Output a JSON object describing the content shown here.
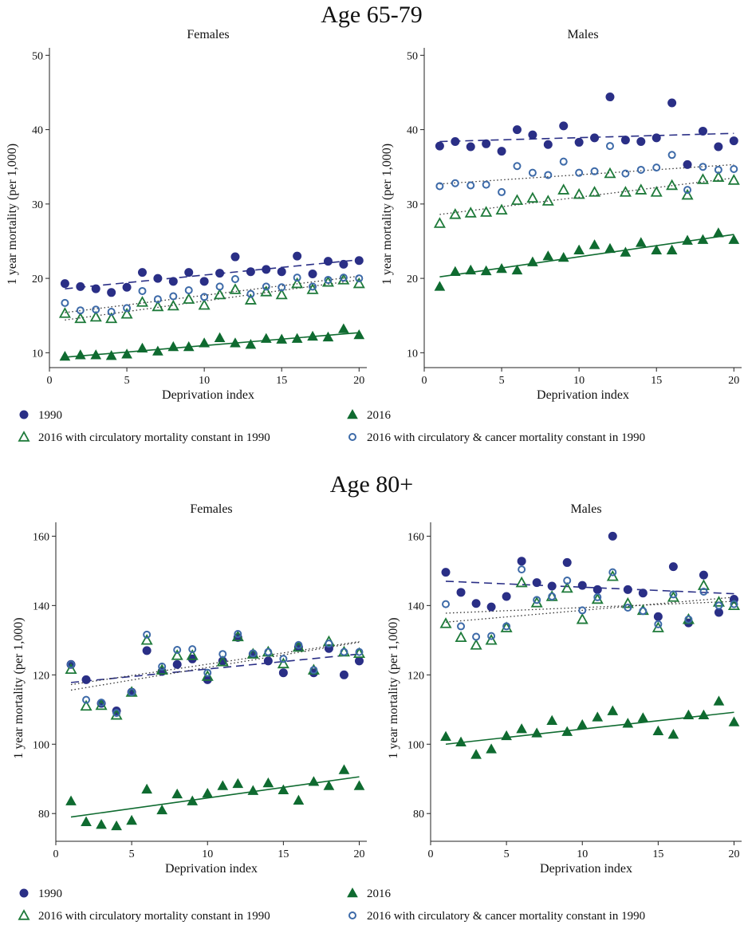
{
  "sections": [
    {
      "title": "Age 65-79"
    },
    {
      "title": "Age 80+"
    }
  ],
  "legend": {
    "s1990": "1990",
    "s2016": "2016",
    "circ": "2016 with circulatory mortality constant in 1990",
    "circcancer": "2016 with circulatory & cancer mortality constant in 1990"
  },
  "colors": {
    "s1990": "#2a2f86",
    "s2016": "#0f6b30",
    "circ": "#1e7a3a",
    "circcancer": "#3d6aa8"
  },
  "chart_data": [
    {
      "type": "scatter",
      "section": "Age 65-79",
      "title": "Females",
      "xlabel": "Deprivation index",
      "ylabel": "1 year mortality (per 1,000)",
      "xlim": [
        0,
        20.5
      ],
      "ylim": [
        8,
        51
      ],
      "xticks": [
        0,
        5,
        10,
        15,
        20
      ],
      "yticks": [
        10,
        20,
        30,
        40,
        50
      ],
      "x": [
        1,
        2,
        3,
        4,
        5,
        6,
        7,
        8,
        9,
        10,
        11,
        12,
        13,
        14,
        15,
        16,
        17,
        18,
        19,
        20
      ],
      "series": [
        {
          "name": "1990",
          "key": "s1990",
          "marker": "circle-filled",
          "line": "dashed",
          "values": [
            19.3,
            18.9,
            18.6,
            18.1,
            18.8,
            20.8,
            20.0,
            19.6,
            20.8,
            19.6,
            20.7,
            22.9,
            20.9,
            21.2,
            20.9,
            23.0,
            20.6,
            22.3,
            21.9,
            22.4
          ],
          "fit": [
            18.6,
            22.5
          ]
        },
        {
          "name": "2016",
          "key": "s2016",
          "marker": "triangle-filled",
          "line": "solid",
          "values": [
            9.5,
            9.7,
            9.7,
            9.6,
            9.8,
            10.6,
            10.2,
            10.8,
            10.8,
            11.3,
            12.0,
            11.3,
            11.1,
            11.9,
            11.8,
            11.9,
            12.2,
            12.1,
            13.2,
            12.4
          ],
          "fit": [
            9.4,
            12.7
          ]
        },
        {
          "name": "2016 with circulatory mortality constant in 1990",
          "key": "circ",
          "marker": "triangle-open",
          "line": "dotted",
          "values": [
            15.3,
            14.6,
            14.8,
            14.6,
            15.2,
            16.8,
            16.2,
            16.3,
            17.2,
            16.4,
            17.8,
            18.5,
            17.1,
            18.2,
            17.8,
            19.3,
            18.5,
            19.5,
            19.8,
            19.3
          ],
          "fit": [
            14.4,
            19.8
          ]
        },
        {
          "name": "2016 with circulatory & cancer mortality constant in 1990",
          "key": "circcancer",
          "marker": "circle-open",
          "line": "dotted",
          "values": [
            16.7,
            15.7,
            15.8,
            15.5,
            16.0,
            18.3,
            17.2,
            17.6,
            18.4,
            17.5,
            18.9,
            19.9,
            17.9,
            18.9,
            18.8,
            20.1,
            18.9,
            19.8,
            20.1,
            20.0
          ],
          "fit": [
            15.4,
            20.3
          ]
        }
      ]
    },
    {
      "type": "scatter",
      "section": "Age 65-79",
      "title": "Males",
      "xlabel": "Deprivation index",
      "ylabel": "1 year mortality (per 1,000)",
      "xlim": [
        0,
        20.5
      ],
      "ylim": [
        8,
        51
      ],
      "xticks": [
        0,
        5,
        10,
        15,
        20
      ],
      "yticks": [
        10,
        20,
        30,
        40,
        50
      ],
      "x": [
        1,
        2,
        3,
        4,
        5,
        6,
        7,
        8,
        9,
        10,
        11,
        12,
        13,
        14,
        15,
        16,
        17,
        18,
        19,
        20
      ],
      "series": [
        {
          "name": "1990",
          "key": "s1990",
          "marker": "circle-filled",
          "line": "dashed",
          "values": [
            37.8,
            38.4,
            37.7,
            38.1,
            37.1,
            40.0,
            39.3,
            38.0,
            40.5,
            38.3,
            38.9,
            44.4,
            38.6,
            38.4,
            38.9,
            43.6,
            35.3,
            39.8,
            37.7,
            38.5
          ],
          "fit": [
            38.4,
            39.5
          ]
        },
        {
          "name": "2016",
          "key": "s2016",
          "marker": "triangle-filled",
          "line": "solid",
          "values": [
            18.9,
            20.9,
            21.1,
            21.0,
            21.3,
            21.1,
            22.2,
            23.0,
            22.8,
            23.8,
            24.5,
            24.0,
            23.5,
            24.8,
            23.8,
            23.8,
            25.1,
            25.2,
            26.1,
            25.2
          ],
          "fit": [
            20.2,
            25.9
          ]
        },
        {
          "name": "2016 with circulatory mortality constant in 1990",
          "key": "circ",
          "marker": "triangle-open",
          "line": "dotted",
          "values": [
            27.4,
            28.6,
            28.8,
            28.9,
            29.2,
            30.5,
            30.8,
            30.4,
            31.9,
            31.3,
            31.6,
            34.1,
            31.6,
            31.9,
            31.6,
            32.5,
            31.2,
            33.3,
            33.6,
            33.2
          ],
          "fit": [
            28.6,
            33.5
          ]
        },
        {
          "name": "2016 with circulatory & cancer mortality constant in 1990",
          "key": "circcancer",
          "marker": "circle-open",
          "line": "dotted",
          "values": [
            32.4,
            32.8,
            32.5,
            32.6,
            31.6,
            35.1,
            34.2,
            33.9,
            35.7,
            34.2,
            34.4,
            37.8,
            34.1,
            34.6,
            34.9,
            36.6,
            31.9,
            35.0,
            34.6,
            34.7
          ],
          "fit": [
            32.7,
            35.3
          ]
        }
      ]
    },
    {
      "type": "scatter",
      "section": "Age 80+",
      "title": "Females",
      "xlabel": "Deprivation index",
      "ylabel": "1 year mortality (per 1,000)",
      "xlim": [
        0,
        20.5
      ],
      "ylim": [
        72,
        164
      ],
      "xticks": [
        0,
        5,
        10,
        15,
        20
      ],
      "yticks": [
        80,
        100,
        120,
        140,
        160
      ],
      "x": [
        1,
        2,
        3,
        4,
        5,
        6,
        7,
        8,
        9,
        10,
        11,
        12,
        13,
        14,
        15,
        16,
        17,
        18,
        19,
        20
      ],
      "series": [
        {
          "name": "1990",
          "key": "s1990",
          "marker": "circle-filled",
          "line": "dashed",
          "values": [
            123.0,
            118.6,
            111.8,
            109.6,
            115.0,
            127.0,
            121.0,
            123.0,
            124.6,
            118.6,
            124.0,
            130.8,
            126.0,
            124.0,
            120.6,
            128.0,
            120.6,
            127.6,
            120.0,
            124.0
          ],
          "fit": [
            117.8,
            126.0
          ]
        },
        {
          "name": "2016",
          "key": "s2016",
          "marker": "triangle-filled",
          "line": "solid",
          "values": [
            83.6,
            77.6,
            76.8,
            76.4,
            78.0,
            87.0,
            81.0,
            85.6,
            83.6,
            85.8,
            88.0,
            88.6,
            86.6,
            88.8,
            86.8,
            83.8,
            89.2,
            88.0,
            92.6,
            88.0
          ],
          "fit": [
            79.0,
            90.6
          ]
        },
        {
          "name": "2016 with circulatory mortality constant in 1990",
          "key": "circ",
          "marker": "triangle-open",
          "line": "dotted",
          "values": [
            121.6,
            111.0,
            111.2,
            108.4,
            115.0,
            130.0,
            121.4,
            125.6,
            125.6,
            119.6,
            123.8,
            131.0,
            126.0,
            126.6,
            123.2,
            128.0,
            121.4,
            129.6,
            126.6,
            126.2
          ],
          "fit": [
            115.6,
            129.4
          ]
        },
        {
          "name": "2016 with circulatory & cancer mortality constant in 1990",
          "key": "circcancer",
          "marker": "circle-open",
          "line": "dotted",
          "values": [
            123.0,
            112.8,
            112.0,
            109.0,
            115.0,
            131.6,
            122.4,
            127.2,
            127.4,
            120.6,
            126.0,
            131.8,
            126.2,
            126.6,
            124.6,
            128.6,
            121.4,
            129.0,
            126.6,
            126.6
          ],
          "fit": [
            117.2,
            129.6
          ]
        }
      ]
    },
    {
      "type": "scatter",
      "section": "Age 80+",
      "title": "Males",
      "xlabel": "Deprivation index",
      "ylabel": "1 year mortality (per 1,000)",
      "xlim": [
        0,
        20.5
      ],
      "ylim": [
        72,
        164
      ],
      "xticks": [
        0,
        5,
        10,
        15,
        20
      ],
      "yticks": [
        80,
        100,
        120,
        140,
        160
      ],
      "x": [
        1,
        2,
        3,
        4,
        5,
        6,
        7,
        8,
        9,
        10,
        11,
        12,
        13,
        14,
        15,
        16,
        17,
        18,
        19,
        20
      ],
      "series": [
        {
          "name": "1990",
          "key": "s1990",
          "marker": "circle-filled",
          "line": "dashed",
          "values": [
            149.6,
            143.8,
            140.6,
            139.6,
            142.6,
            152.8,
            146.6,
            145.6,
            152.4,
            145.8,
            144.6,
            160.0,
            144.6,
            143.6,
            136.8,
            151.2,
            135.0,
            148.8,
            138.0,
            141.8
          ],
          "fit": [
            147.0,
            143.4
          ]
        },
        {
          "name": "2016",
          "key": "s2016",
          "marker": "triangle-filled",
          "line": "solid",
          "values": [
            102.2,
            100.6,
            97.0,
            98.6,
            102.4,
            104.4,
            103.2,
            106.8,
            103.6,
            105.6,
            107.8,
            109.6,
            106.0,
            107.6,
            103.8,
            102.8,
            108.4,
            108.4,
            112.4,
            106.4
          ],
          "fit": [
            100.0,
            109.2
          ]
        },
        {
          "name": "2016 with circulatory mortality constant in 1990",
          "key": "circ",
          "marker": "triangle-open",
          "line": "dotted",
          "values": [
            134.8,
            130.8,
            128.6,
            130.0,
            133.6,
            146.6,
            140.8,
            142.6,
            145.0,
            136.0,
            141.8,
            148.4,
            140.6,
            138.6,
            133.6,
            142.4,
            136.0,
            145.8,
            141.0,
            140.0
          ],
          "fit": [
            135.2,
            142.4
          ]
        },
        {
          "name": "2016 with circulatory & cancer mortality constant in 1990",
          "key": "circcancer",
          "marker": "circle-open",
          "line": "dotted",
          "values": [
            140.4,
            134.0,
            131.0,
            131.2,
            134.0,
            150.4,
            141.6,
            142.6,
            147.2,
            138.6,
            142.4,
            149.6,
            139.4,
            138.4,
            134.6,
            143.2,
            136.0,
            144.0,
            140.0,
            140.4
          ],
          "fit": [
            137.8,
            141.2
          ]
        }
      ]
    }
  ]
}
